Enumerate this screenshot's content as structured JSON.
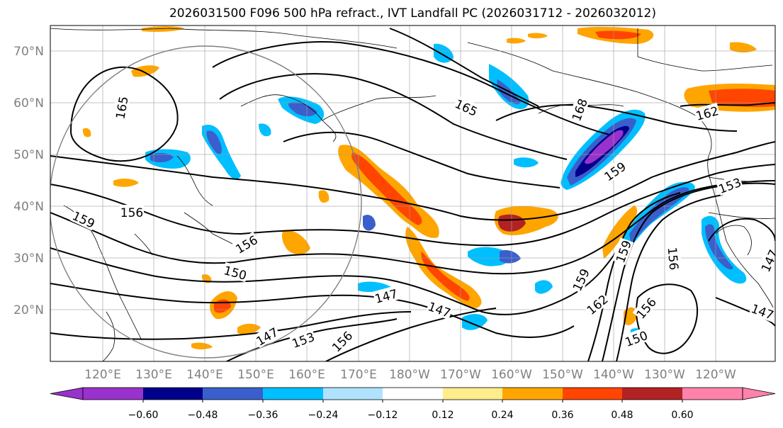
{
  "title": "2026031500 F096 500 hPa refract., IVT Landfall PC (2026031712 - 2026032012)",
  "map": {
    "lat_labels": [
      "70°N",
      "60°N",
      "50°N",
      "40°N",
      "30°N",
      "20°N"
    ],
    "lon_labels": [
      "120°E",
      "130°E",
      "140°E",
      "150°E",
      "160°E",
      "170°E",
      "180°W",
      "170°W",
      "160°W",
      "150°W",
      "140°W",
      "130°W",
      "120°W"
    ],
    "contour_labels": [
      "165",
      "165",
      "168",
      "162",
      "159",
      "156",
      "159",
      "156",
      "150",
      "147",
      "147",
      "147",
      "153",
      "156",
      "159",
      "162",
      "159",
      "156",
      "153",
      "156",
      "147",
      "150",
      "147"
    ]
  },
  "colorbar": {
    "tick_labels": [
      "−0.60",
      "−0.48",
      "−0.36",
      "−0.24",
      "−0.12",
      "0.12",
      "0.24",
      "0.36",
      "0.48",
      "0.60"
    ],
    "colors": [
      "#9932cc",
      "#00008b",
      "#3a5fcd",
      "#00bfff",
      "#b0e2ff",
      "#ffffff",
      "#ffec8b",
      "#ffa500",
      "#ff4500",
      "#b22222",
      "#ff82ab"
    ]
  }
}
